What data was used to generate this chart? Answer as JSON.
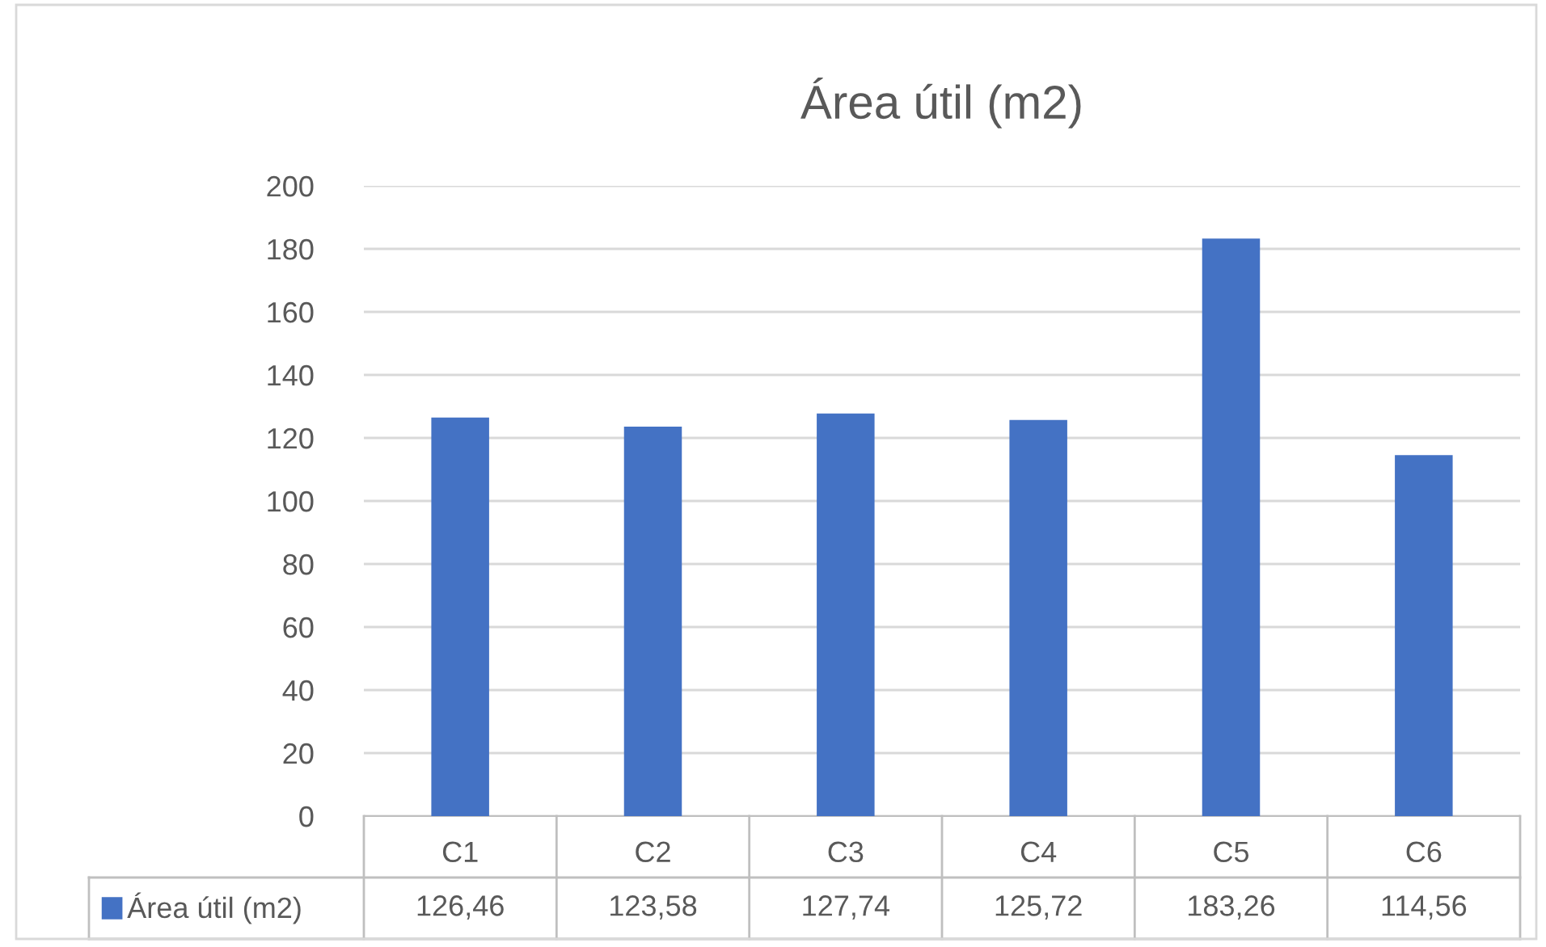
{
  "chart_data": {
    "type": "bar",
    "title": "Área útil (m2)",
    "categories": [
      "C1",
      "C2",
      "C3",
      "C4",
      "C5",
      "C6"
    ],
    "series": [
      {
        "name": "Área útil (m2)",
        "color": "#4472c4",
        "values": [
          126.46,
          123.58,
          127.74,
          125.72,
          183.26,
          114.56
        ],
        "value_labels": [
          "126,46",
          "123,58",
          "127,74",
          "125,72",
          "183,26",
          "114,56"
        ]
      }
    ],
    "ylim": [
      0,
      200
    ],
    "yticks": [
      0,
      20,
      40,
      60,
      80,
      100,
      120,
      140,
      160,
      180,
      200
    ],
    "grid": "y"
  }
}
